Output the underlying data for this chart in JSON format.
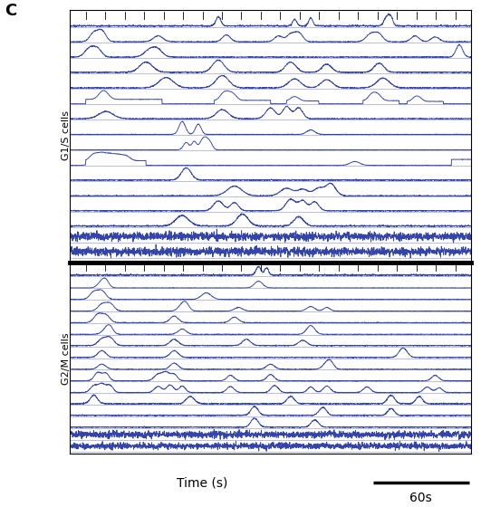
{
  "panel_label": "C",
  "group1_label": "G1/S cells",
  "group2_label": "G2/M cells",
  "xlabel": "Time (s)",
  "scalebar_label": "60s",
  "trace_color": "#3344aa",
  "bg_color": "#ffffff",
  "line_width": 0.65,
  "baseline_lw": 0.4,
  "n_pts": 2000,
  "seed": 7
}
